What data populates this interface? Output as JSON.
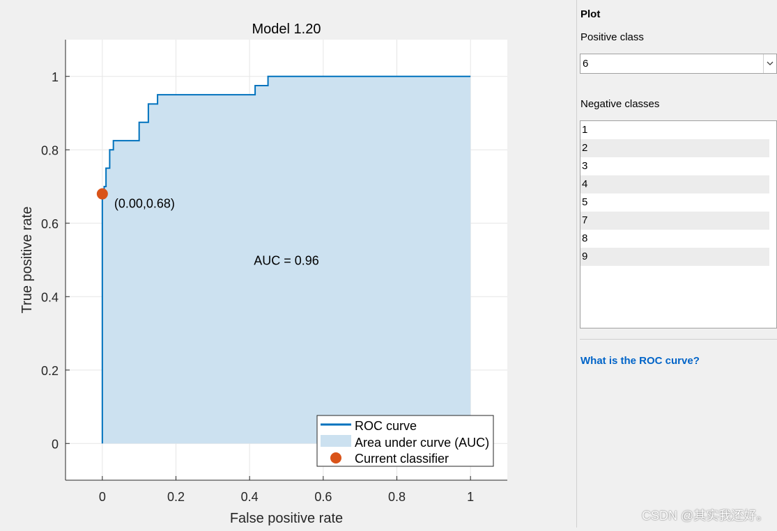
{
  "chart_data": {
    "type": "line",
    "title": "Model 1.20",
    "xlabel": "False positive rate",
    "ylabel": "True positive rate",
    "xlim": [
      -0.1,
      1.1
    ],
    "ylim": [
      -0.1,
      1.1
    ],
    "x_ticks": [
      "0",
      "0.2",
      "0.4",
      "0.6",
      "0.8",
      "1"
    ],
    "x_tick_values": [
      0,
      0.2,
      0.4,
      0.6,
      0.8,
      1
    ],
    "y_ticks": [
      "0",
      "0.2",
      "0.4",
      "0.6",
      "0.8",
      "1"
    ],
    "y_tick_values": [
      0,
      0.2,
      0.4,
      0.6,
      0.8,
      1
    ],
    "grid": true,
    "series": [
      {
        "name": "ROC curve",
        "color": "#0072bd",
        "x": [
          0,
          0,
          0.005,
          0.005,
          0.01,
          0.01,
          0.02,
          0.02,
          0.03,
          0.03,
          0.1,
          0.1,
          0.125,
          0.125,
          0.15,
          0.15,
          0.415,
          0.415,
          0.45,
          0.45,
          1
        ],
        "y": [
          0,
          0.68,
          0.68,
          0.7,
          0.7,
          0.75,
          0.75,
          0.8,
          0.8,
          0.825,
          0.825,
          0.875,
          0.875,
          0.925,
          0.925,
          0.95,
          0.95,
          0.975,
          0.975,
          1.0,
          1.0
        ]
      }
    ],
    "area": {
      "name": "Area under curve (AUC)",
      "color": "#cce1f0"
    },
    "current_classifier": {
      "name": "Current classifier",
      "x": 0.0,
      "y": 0.68,
      "label": "(0.00,0.68)",
      "color": "#d95319"
    },
    "annotation": "AUC = 0.96",
    "legend": {
      "position": "bottom-right",
      "entries": [
        "ROC curve",
        "Area under curve (AUC)",
        "Current classifier"
      ]
    }
  },
  "panel": {
    "heading": "Plot",
    "positive_class_label": "Positive class",
    "positive_class_value": "6",
    "negative_classes_label": "Negative classes",
    "negative_classes": [
      "1",
      "2",
      "3",
      "4",
      "5",
      "7",
      "8",
      "9"
    ],
    "help_link": "What is the ROC curve?"
  },
  "watermark": "CSDN @其实我还好。"
}
